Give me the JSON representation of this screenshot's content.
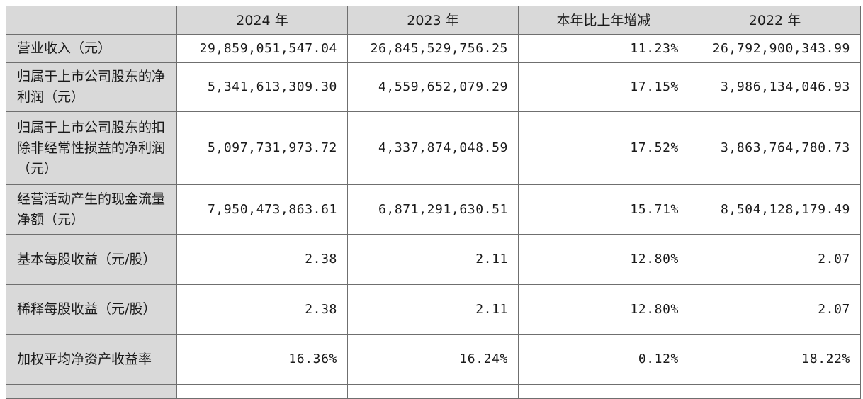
{
  "table": {
    "headers": [
      "",
      "2024 年",
      "2023 年",
      "本年比上年增减",
      "2022 年"
    ],
    "rows": [
      {
        "label": "营业收入（元）",
        "v2024": "29,859,051,547.04",
        "v2023": "26,845,529,756.25",
        "change": "11.23%",
        "v2022": "26,792,900,343.99"
      },
      {
        "label": "归属于上市公司股东的净利润（元）",
        "v2024": "5,341,613,309.30",
        "v2023": "4,559,652,079.29",
        "change": "17.15%",
        "v2022": "3,986,134,046.93"
      },
      {
        "label": "归属于上市公司股东的扣除非经常性损益的净利润（元）",
        "v2024": "5,097,731,973.72",
        "v2023": "4,337,874,048.59",
        "change": "17.52%",
        "v2022": "3,863,764,780.73"
      },
      {
        "label": "经营活动产生的现金流量净额（元）",
        "v2024": "7,950,473,863.61",
        "v2023": "6,871,291,630.51",
        "change": "15.71%",
        "v2022": "8,504,128,179.49"
      },
      {
        "label": "基本每股收益（元/股）",
        "v2024": "2.38",
        "v2023": "2.11",
        "change": "12.80%",
        "v2022": "2.07"
      },
      {
        "label": "稀释每股收益（元/股）",
        "v2024": "2.38",
        "v2023": "2.11",
        "change": "12.80%",
        "v2022": "2.07"
      },
      {
        "label": "加权平均净资产收益率",
        "v2024": "16.36%",
        "v2023": "16.24%",
        "change": "0.12%",
        "v2022": "18.22%"
      }
    ]
  }
}
